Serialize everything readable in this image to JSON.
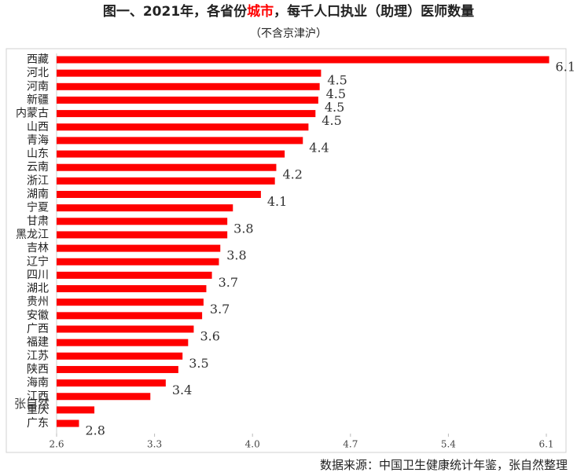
{
  "chart_data": {
    "type": "bar",
    "orientation": "horizontal",
    "title_pre": "图一、2021年，各省份",
    "title_highlight": "城市",
    "title_post": "，每千人口执业（助理）医师数量",
    "highlight_color": "#ff0000",
    "subtitle": "（不含京津沪）",
    "categories": [
      "西藏",
      "河北",
      "河南",
      "新疆",
      "内蒙古",
      "山西",
      "青海",
      "山东",
      "云南",
      "浙江",
      "湖南",
      "宁夏",
      "甘肃",
      "黑龙江",
      "吉林",
      "辽宁",
      "四川",
      "湖北",
      "贵州",
      "安徽",
      "广西",
      "福建",
      "江苏",
      "陕西",
      "海南",
      "江西",
      "重庆",
      "广东"
    ],
    "values": [
      6.12,
      4.49,
      4.48,
      4.47,
      4.45,
      4.4,
      4.36,
      4.23,
      4.17,
      4.16,
      4.06,
      3.86,
      3.82,
      3.82,
      3.77,
      3.76,
      3.71,
      3.67,
      3.65,
      3.64,
      3.58,
      3.54,
      3.5,
      3.47,
      3.38,
      3.27,
      2.87,
      2.76
    ],
    "value_labels": [
      "6.1",
      "4.5",
      "4.5",
      "4.5",
      "4.5",
      null,
      "4.4",
      null,
      "4.2",
      null,
      "4.1",
      null,
      "3.8",
      null,
      "3.8",
      null,
      "3.7",
      null,
      "3.7",
      null,
      "3.6",
      null,
      "3.5",
      null,
      "3.4",
      null,
      null,
      "2.8"
    ],
    "color": "#ff0000",
    "xlim": [
      2.6,
      6.1
    ],
    "xticks": [
      2.6,
      3.3,
      {
        "value": 4,
        "label": "4.0"
      },
      4.7,
      5.4,
      6.1
    ],
    "grid": false,
    "watermark": "张自然",
    "source": "数据来源：中国卫生健康统计年鉴，张自然整理"
  }
}
